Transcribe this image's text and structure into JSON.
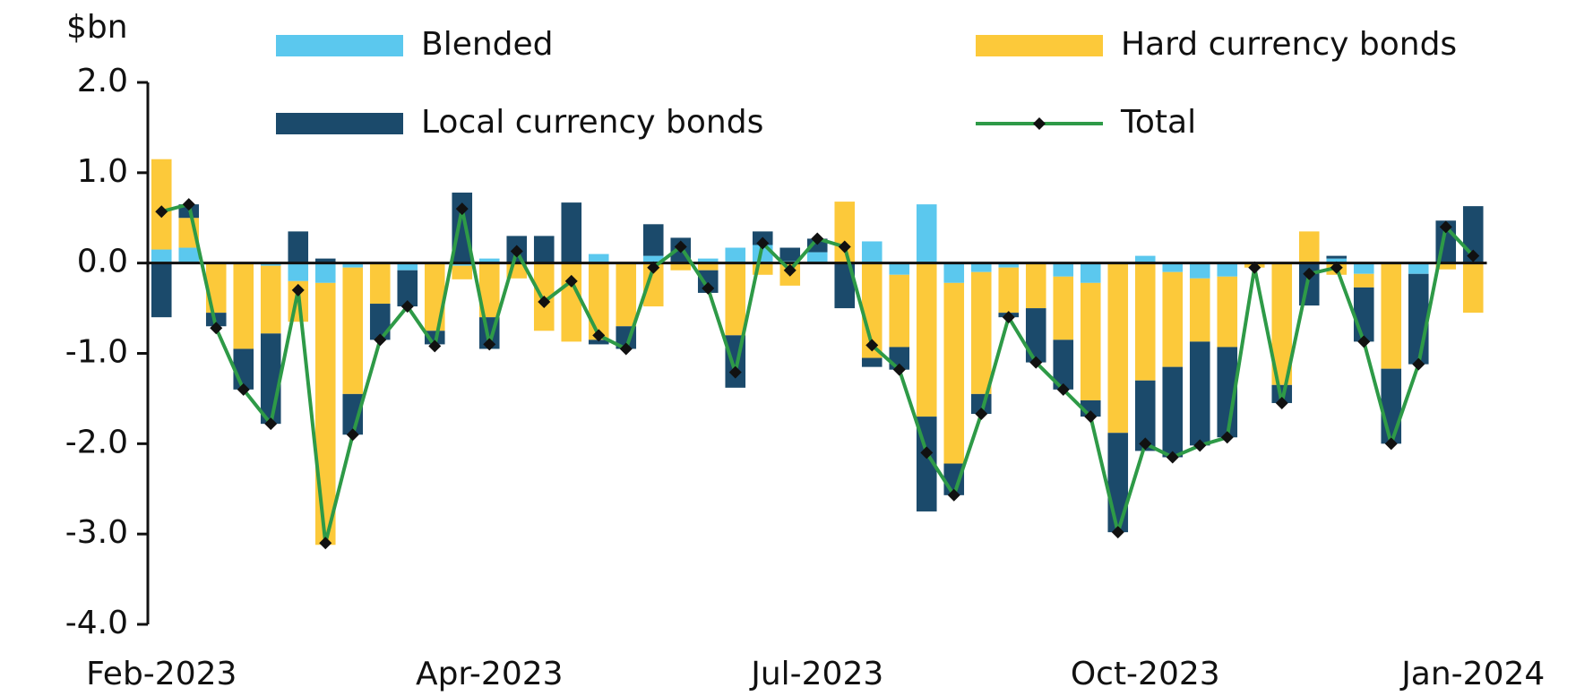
{
  "chart_data": {
    "type": "bar",
    "y_unit_label": "$bn",
    "categories": [
      "Feb-2023",
      null,
      null,
      null,
      null,
      null,
      null,
      null,
      null,
      null,
      null,
      null,
      "Apr-2023",
      null,
      null,
      null,
      null,
      null,
      null,
      null,
      null,
      null,
      null,
      null,
      "Jul-2023",
      null,
      null,
      null,
      null,
      null,
      null,
      null,
      null,
      null,
      null,
      null,
      "Oct-2023",
      null,
      null,
      null,
      null,
      null,
      null,
      null,
      null,
      null,
      null,
      null,
      "Jan-2024"
    ],
    "series": [
      {
        "name": "Blended",
        "color": "#5bc8ee",
        "values": [
          0.15,
          0.17,
          0,
          0,
          -0.03,
          -0.2,
          -0.22,
          -0.05,
          0,
          -0.08,
          0,
          -0.03,
          0.05,
          0,
          0,
          0,
          0.1,
          0,
          0.08,
          0,
          0.05,
          0.17,
          0.2,
          0.02,
          0.12,
          0,
          0.24,
          -0.13,
          0.65,
          -0.22,
          -0.1,
          -0.05,
          0,
          -0.15,
          -0.22,
          0,
          0.08,
          -0.1,
          -0.17,
          -0.15,
          0,
          0,
          0,
          0.05,
          -0.12,
          0,
          -0.12,
          0,
          0
        ]
      },
      {
        "name": "Hard currency bonds",
        "color": "#fcc93a",
        "values": [
          1.0,
          0.33,
          -0.55,
          -0.95,
          -0.75,
          -0.45,
          -2.9,
          -1.4,
          -0.45,
          0,
          -0.75,
          -0.15,
          -0.6,
          -0.17,
          -0.75,
          -0.87,
          -0.85,
          -0.7,
          -0.48,
          -0.08,
          -0.08,
          -0.8,
          -0.13,
          -0.25,
          0,
          0.68,
          -1.05,
          -0.8,
          -1.7,
          -2.0,
          -1.35,
          -0.5,
          -0.5,
          -0.7,
          -1.3,
          -1.88,
          -1.3,
          -1.05,
          -0.7,
          -0.78,
          -0.05,
          -1.35,
          0.35,
          -0.13,
          -0.15,
          -1.17,
          0,
          -0.07,
          -0.55
        ]
      },
      {
        "name": "Local currency bonds",
        "color": "#1b4a6b",
        "values": [
          -0.6,
          0.15,
          -0.15,
          -0.45,
          -1.0,
          0.35,
          0.05,
          -0.45,
          -0.4,
          -0.4,
          -0.15,
          0.78,
          -0.35,
          0.3,
          0.3,
          0.67,
          -0.05,
          -0.25,
          0.35,
          0.28,
          -0.25,
          -0.58,
          0.15,
          0.15,
          0.15,
          -0.5,
          -0.1,
          -0.25,
          -1.05,
          -0.35,
          -0.22,
          -0.05,
          -0.6,
          -0.55,
          -0.18,
          -1.1,
          -0.78,
          -1.0,
          -1.15,
          -1.0,
          0,
          -0.2,
          -0.47,
          0.03,
          -0.6,
          -0.83,
          -1.0,
          0.47,
          0.63
        ]
      }
    ],
    "total": {
      "name": "Total",
      "color": "#2e9a47",
      "marker_color": "#111111",
      "values": [
        0.57,
        0.65,
        -0.72,
        -1.4,
        -1.78,
        -0.3,
        -3.1,
        -1.9,
        -0.85,
        -0.48,
        -0.92,
        0.6,
        -0.9,
        0.13,
        -0.43,
        -0.2,
        -0.8,
        -0.95,
        -0.05,
        0.18,
        -0.28,
        -1.21,
        0.22,
        -0.08,
        0.27,
        0.18,
        -0.91,
        -1.18,
        -2.1,
        -2.57,
        -1.67,
        -0.6,
        -1.1,
        -1.4,
        -1.7,
        -2.98,
        -2.0,
        -2.15,
        -2.02,
        -1.93,
        -0.05,
        -1.55,
        -0.12,
        -0.05,
        -0.87,
        -2.0,
        -1.12,
        0.4,
        0.08
      ]
    },
    "ylim": [
      -4,
      2
    ],
    "yticks": [
      {
        "value": 2,
        "label": "2.0"
      },
      {
        "value": 1,
        "label": "1.0"
      },
      {
        "value": 0,
        "label": "0.0"
      },
      {
        "value": -1,
        "label": "-1.0"
      },
      {
        "value": -2,
        "label": "-2.0"
      },
      {
        "value": -3,
        "label": "-3.0"
      },
      {
        "value": -4,
        "label": "-4.0"
      }
    ],
    "grid": false
  }
}
